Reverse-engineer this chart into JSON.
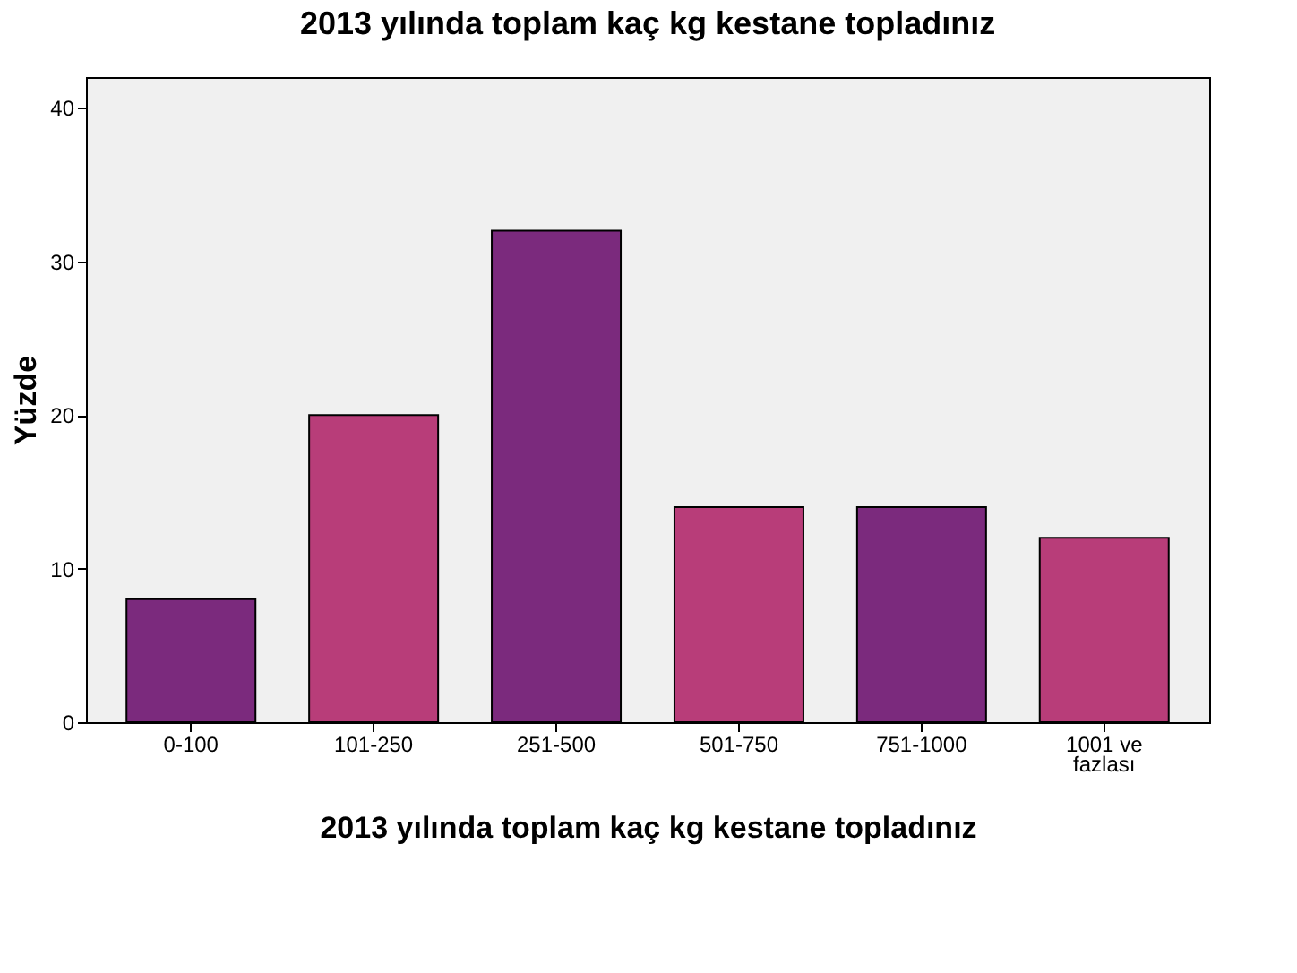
{
  "chart_data": {
    "type": "bar",
    "title": "2013 yılında toplam kaç kg kestane topladınız",
    "xlabel": "2013 yılında toplam kaç kg kestane topladınız",
    "ylabel": "Yüzde",
    "categories": [
      "0-100",
      "101-250",
      "251-500",
      "501-750",
      "751-1000",
      "1001 ve\nfazlası"
    ],
    "values": [
      8,
      20,
      32,
      14,
      14,
      12
    ],
    "colors": [
      "#7b2a7d",
      "#b83d79",
      "#7b2a7d",
      "#b83d79",
      "#7b2a7d",
      "#b83d79"
    ],
    "ylim": [
      0,
      42
    ],
    "yticks": [
      0,
      10,
      20,
      30,
      40
    ],
    "grid": false,
    "legend": false
  }
}
